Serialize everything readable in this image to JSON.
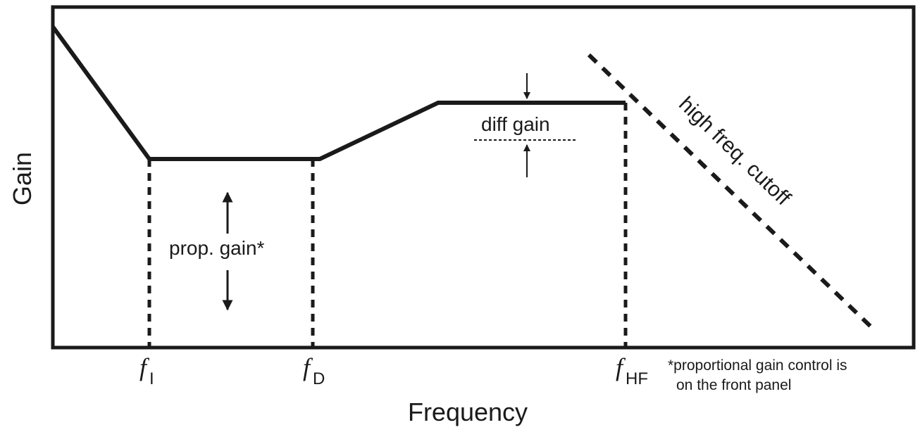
{
  "axes": {
    "y_label": "Gain",
    "x_label": "Frequency"
  },
  "markers": {
    "f_i": {
      "symbol": "f",
      "subscript": "I"
    },
    "f_d": {
      "symbol": "f",
      "subscript": "D"
    },
    "f_hf": {
      "symbol": "f",
      "subscript": "HF"
    }
  },
  "annotations": {
    "prop_gain": "prop. gain*",
    "diff_gain": "diff gain",
    "high_freq_cutoff": "high freq. cutoff"
  },
  "footnote": {
    "line1": "*proportional gain control is",
    "line2": "on the front panel"
  },
  "colors": {
    "ink": "#1a1a1a",
    "background": "#ffffff"
  }
}
